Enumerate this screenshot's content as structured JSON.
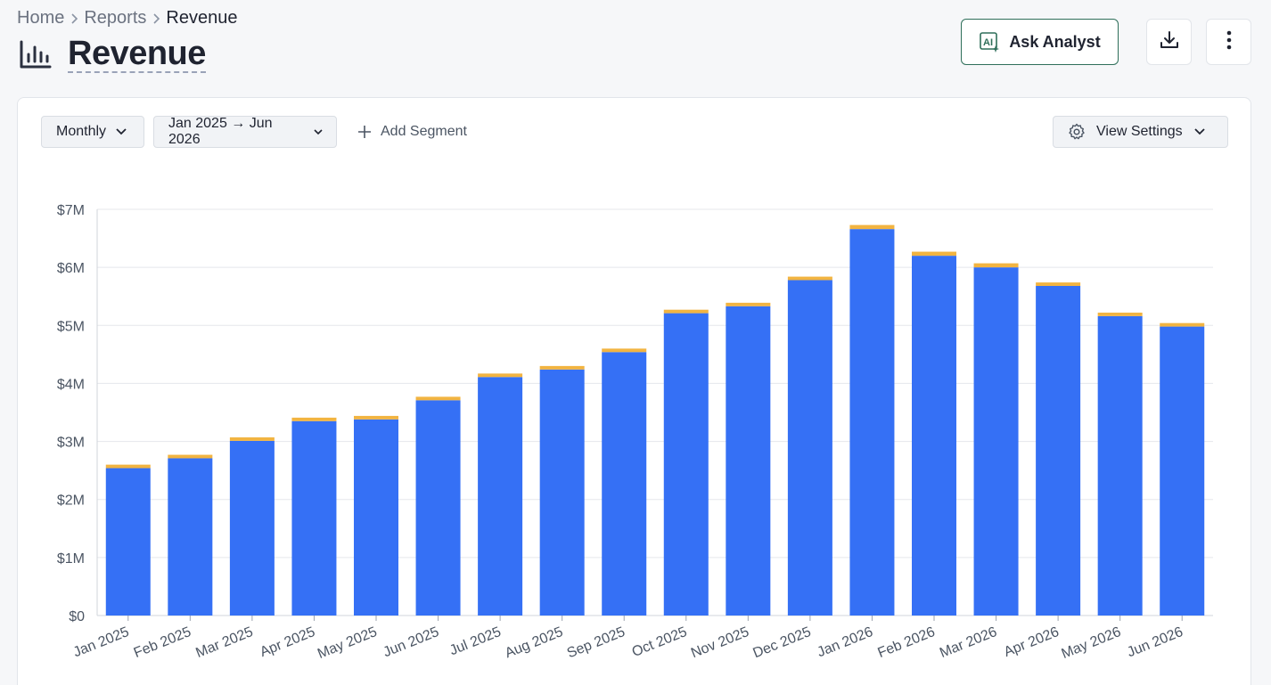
{
  "breadcrumb": {
    "items": [
      "Home",
      "Reports"
    ],
    "current": "Revenue"
  },
  "page": {
    "title": "Revenue"
  },
  "actions": {
    "ask_analyst_label": "Ask Analyst",
    "download_icon": "download-icon",
    "more_icon": "more-vertical-icon"
  },
  "toolbar": {
    "granularity": "Monthly",
    "date_range": "Jan 2025 → Jun 2026",
    "add_segment_label": "Add Segment",
    "view_settings_label": "View Settings"
  },
  "colors": {
    "primary": "#3570f5",
    "secondary": "#f2b441",
    "accent_border": "#2f6f5a"
  },
  "chart_data": {
    "type": "bar",
    "stacked": true,
    "categories": [
      "Jan 2025",
      "Feb 2025",
      "Mar 2025",
      "Apr 2025",
      "May 2025",
      "Jun 2025",
      "Jul 2025",
      "Aug 2025",
      "Sep 2025",
      "Oct 2025",
      "Nov 2025",
      "Dec 2025",
      "Jan 2026",
      "Feb 2026",
      "Mar 2026",
      "Apr 2026",
      "May 2026",
      "Jun 2026"
    ],
    "series": [
      {
        "color": "#3570f5",
        "values": [
          2.54,
          2.71,
          3.01,
          3.35,
          3.38,
          3.71,
          4.11,
          4.24,
          4.54,
          5.21,
          5.33,
          5.78,
          6.66,
          6.2,
          6.0,
          5.68,
          5.16,
          4.98
        ]
      },
      {
        "color": "#f2b441",
        "values": [
          0.06,
          0.06,
          0.06,
          0.06,
          0.06,
          0.06,
          0.06,
          0.06,
          0.06,
          0.06,
          0.06,
          0.06,
          0.07,
          0.07,
          0.07,
          0.06,
          0.06,
          0.06
        ]
      }
    ],
    "yticks": [
      "$0",
      "$1M",
      "$2M",
      "$3M",
      "$4M",
      "$5M",
      "$6M",
      "$7M"
    ],
    "ylim": [
      0,
      7
    ],
    "grid": true,
    "xlabel": "",
    "ylabel": ""
  }
}
